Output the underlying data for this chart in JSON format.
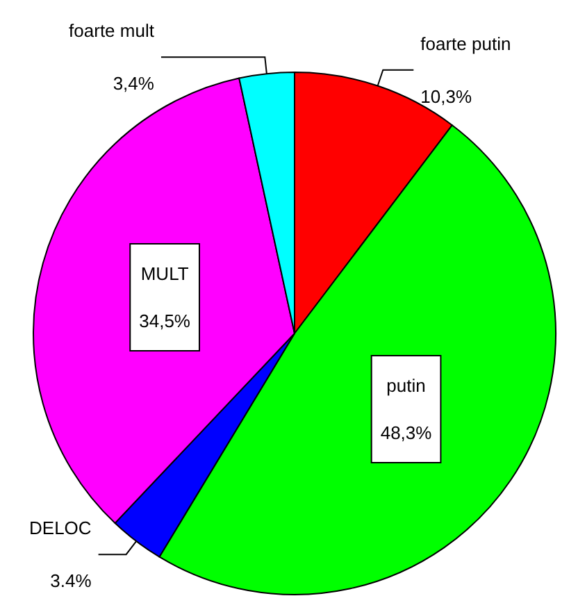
{
  "chart_data": {
    "type": "pie",
    "categories": [
      "foarte putin",
      "putin",
      "DELOC",
      "MULT",
      "foarte mult"
    ],
    "values": [
      10.3,
      48.3,
      3.4,
      34.5,
      3.4
    ],
    "colors": [
      "#ff0000",
      "#00ff00",
      "#0000ff",
      "#ff00ff",
      "#00ffff"
    ],
    "value_labels": [
      "10,3%",
      "48,3%",
      "3.4%",
      "34,5%",
      "3,4%"
    ]
  }
}
